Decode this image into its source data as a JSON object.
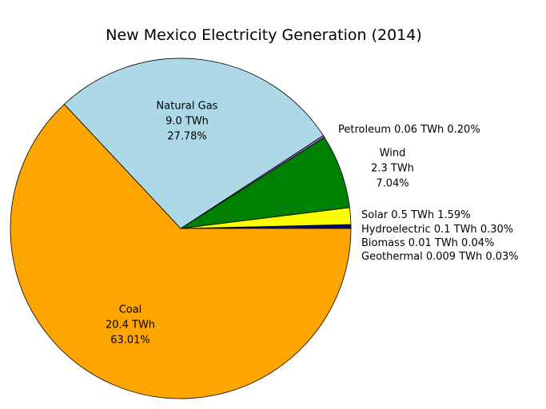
{
  "chart_data": {
    "type": "pie",
    "title": "New Mexico Electricity Generation (2014)",
    "start_angle_deg": 0,
    "direction": "counterclockwise",
    "slices": [
      {
        "name": "Geothermal",
        "twh": "0.009 TWh",
        "percent": 0.03,
        "pct_label": "0.03%",
        "color": "#ff00ff",
        "label_style": "outside"
      },
      {
        "name": "Biomass",
        "twh": "0.01 TWh",
        "percent": 0.04,
        "pct_label": "0.04%",
        "color": "#8b4513",
        "label_style": "outside"
      },
      {
        "name": "Hydroelectric",
        "twh": "0.1 TWh",
        "percent": 0.3,
        "pct_label": "0.30%",
        "color": "#00008b",
        "label_style": "outside"
      },
      {
        "name": "Solar",
        "twh": "0.5 TWh",
        "percent": 1.59,
        "pct_label": "1.59%",
        "color": "#ffff00",
        "label_style": "outside"
      },
      {
        "name": "Wind",
        "twh": "2.3 TWh",
        "percent": 7.04,
        "pct_label": "7.04%",
        "color": "#008000",
        "label_style": "stacked"
      },
      {
        "name": "Petroleum",
        "twh": "0.06 TWh",
        "percent": 0.2,
        "pct_label": "0.20%",
        "color": "#9370db",
        "label_style": "outside"
      },
      {
        "name": "Natural Gas",
        "twh": "9.0 TWh",
        "percent": 27.78,
        "pct_label": "27.78%",
        "color": "#add8e6",
        "label_style": "stacked"
      },
      {
        "name": "Coal",
        "twh": "20.4 TWh",
        "percent": 63.01,
        "pct_label": "63.01%",
        "color": "#ffa500",
        "label_style": "stacked"
      }
    ]
  }
}
